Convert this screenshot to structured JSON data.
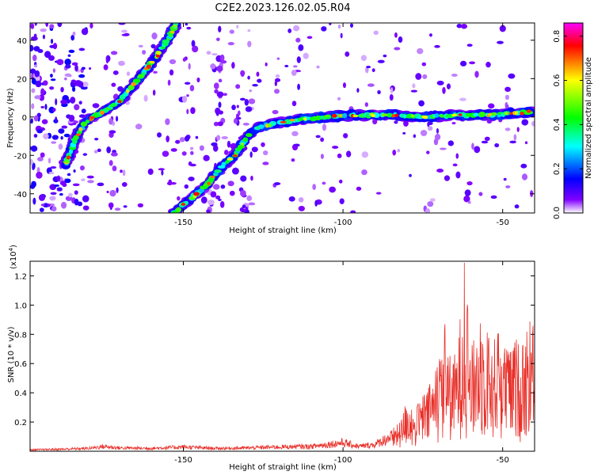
{
  "title": "C2E2.2023.126.02.05.R04",
  "chart_data": [
    {
      "type": "heatmap",
      "xlabel": "Height of straight line (km)",
      "ylabel": "Frequency (Hz)",
      "xlim": [
        -198,
        -40
      ],
      "ylim": [
        -50,
        49
      ],
      "x_ticks": [
        -150,
        -100,
        -50
      ],
      "y_ticks": [
        -40,
        -20,
        0,
        20,
        40
      ],
      "x_tick_labels": [
        "-150",
        "-100",
        "-50"
      ],
      "y_tick_labels": [
        "-40",
        "-20",
        "0",
        "20",
        "40"
      ],
      "colorbar": {
        "label": "Normalized spectral amplitude",
        "range": [
          0,
          0.86
        ],
        "ticks": [
          0.0,
          0.2,
          0.4,
          0.6,
          0.8
        ],
        "tick_labels": [
          "0.0",
          "0.2",
          "0.4",
          "0.6",
          "0.8"
        ],
        "colors": [
          "#ffffff",
          "#8000ff",
          "#0000ff",
          "#00ffff",
          "#00ff00",
          "#ffff00",
          "#ff0000",
          "#ff00ff"
        ]
      },
      "ridges": [
        {
          "name": "",
          "points": [
            [
              -187,
              -25
            ],
            [
              -184,
              -12
            ],
            [
              -181,
              -3
            ],
            [
              -178,
              0
            ],
            [
              -175,
              3
            ],
            [
              -170,
              8
            ],
            [
              -165,
              18
            ],
            [
              -160,
              28
            ],
            [
              -155,
              40
            ],
            [
              -152,
              49
            ]
          ]
        },
        {
          "name": "",
          "points": [
            [
              -153,
              -50
            ],
            [
              -148,
              -43
            ],
            [
              -143,
              -36
            ],
            [
              -138,
              -26
            ],
            [
              -134,
              -20
            ],
            [
              -130,
              -10
            ],
            [
              -126,
              -5
            ],
            [
              -120,
              -3
            ],
            [
              -112,
              -1
            ],
            [
              -105,
              0
            ],
            [
              -95,
              1
            ],
            [
              -85,
              1
            ],
            [
              -75,
              0
            ],
            [
              -65,
              1
            ],
            [
              -55,
              1
            ],
            [
              -45,
              2
            ],
            [
              -40,
              3
            ]
          ]
        }
      ]
    },
    {
      "type": "line",
      "xlabel": "Height of straight line (km)",
      "ylabel": "SNR (10 * v/v)",
      "multiplier_label": "(x10",
      "multiplier_exponent": "4",
      "multiplier_close": ")",
      "xlim": [
        -198,
        -40
      ],
      "ylim": [
        0,
        13000
      ],
      "x_ticks": [
        -150,
        -100,
        -50
      ],
      "y_ticks": [
        2000,
        4000,
        6000,
        8000,
        10000,
        12000
      ],
      "x_tick_labels": [
        "-150",
        "-100",
        "-50"
      ],
      "y_tick_labels": [
        "0.2",
        "0.4",
        "0.6",
        "0.8",
        "1.0",
        "1.2"
      ],
      "color": "#e8302a",
      "series": [
        {
          "name": "",
          "envelope": [
            [
              -198,
              150
            ],
            [
              -190,
              200
            ],
            [
              -180,
              300
            ],
            [
              -175,
              500
            ],
            [
              -170,
              350
            ],
            [
              -160,
              300
            ],
            [
              -150,
              450
            ],
            [
              -140,
              300
            ],
            [
              -130,
              350
            ],
            [
              -120,
              450
            ],
            [
              -110,
              500
            ],
            [
              -100,
              900
            ],
            [
              -95,
              500
            ],
            [
              -90,
              700
            ],
            [
              -87,
              1200
            ],
            [
              -85,
              1500
            ],
            [
              -82,
              2000
            ],
            [
              -80,
              3800
            ],
            [
              -78,
              2500
            ],
            [
              -76,
              3500
            ],
            [
              -74,
              4000
            ],
            [
              -72,
              5000
            ],
            [
              -70,
              6000
            ],
            [
              -68,
              8800
            ],
            [
              -66,
              6000
            ],
            [
              -64,
              7500
            ],
            [
              -62,
              12900
            ],
            [
              -60,
              7000
            ],
            [
              -58,
              8500
            ],
            [
              -56,
              9000
            ],
            [
              -54,
              7500
            ],
            [
              -52,
              8000
            ],
            [
              -50,
              8200
            ],
            [
              -48,
              6500
            ],
            [
              -46,
              8000
            ],
            [
              -44,
              7000
            ],
            [
              -42,
              8500
            ],
            [
              -41,
              9200
            ],
            [
              -40,
              8000
            ]
          ]
        }
      ]
    }
  ]
}
